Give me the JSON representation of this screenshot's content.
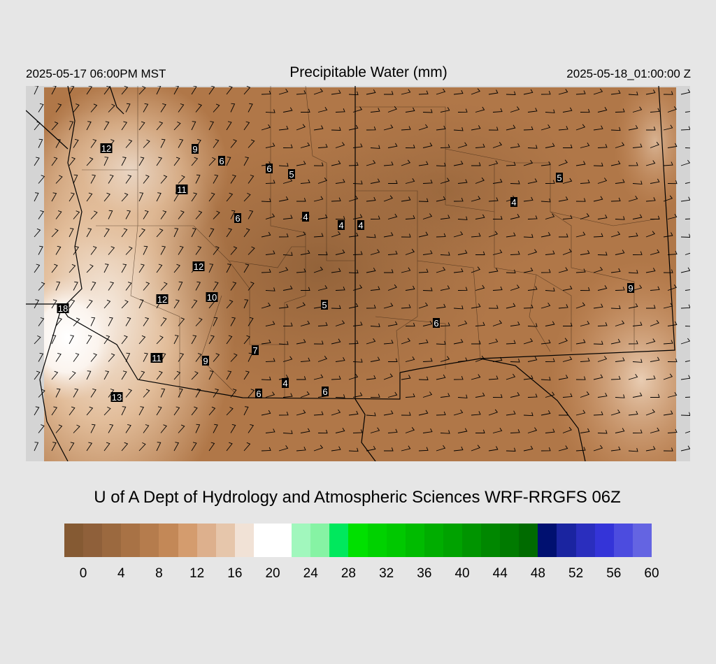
{
  "header": {
    "valid_local": "2025-05-17 06:00PM MST",
    "title": "Precipitable Water (mm)",
    "valid_utc": "2025-05-18_01:00:00 Z"
  },
  "credit": "U of A Dept of Hydrology and Atmospheric Sciences WRF-RRGFS 06Z",
  "colorbar": {
    "colors": [
      "#855a33",
      "#8f603a",
      "#9b693f",
      "#a87245",
      "#b57c4d",
      "#c38857",
      "#d49c6e",
      "#ddb08d",
      "#e6c6ab",
      "#f1e2d6",
      "#ffffff",
      "#ffffff",
      "#a1f7bd",
      "#86f3a4",
      "#00e85d",
      "#00e000",
      "#00d200",
      "#00c800",
      "#00bb00",
      "#00ad00",
      "#00a200",
      "#009400",
      "#008700",
      "#007a00",
      "#006b00",
      "#001070",
      "#1a24a0",
      "#2a2ebe",
      "#3434d8",
      "#4c4cdf",
      "#6464e2"
    ],
    "tick_labels": [
      "0",
      "4",
      "8",
      "12",
      "16",
      "20",
      "24",
      "28",
      "32",
      "36",
      "40",
      "44",
      "48",
      "52",
      "56",
      "60"
    ]
  },
  "map": {
    "station_values": [
      {
        "label": "12"
      },
      {
        "label": "9"
      },
      {
        "label": "6"
      },
      {
        "label": "6"
      },
      {
        "label": "5"
      },
      {
        "label": "11"
      },
      {
        "label": "6"
      },
      {
        "label": "4"
      },
      {
        "label": "4"
      },
      {
        "label": "4"
      },
      {
        "label": "5"
      },
      {
        "label": "4"
      },
      {
        "label": "12"
      },
      {
        "label": "12"
      },
      {
        "label": "10"
      },
      {
        "label": "18"
      },
      {
        "label": "5"
      },
      {
        "label": "6"
      },
      {
        "label": "9"
      },
      {
        "label": "7"
      },
      {
        "label": "11"
      },
      {
        "label": "9"
      },
      {
        "label": "4"
      },
      {
        "label": "6"
      },
      {
        "label": "6"
      },
      {
        "label": "13"
      }
    ]
  }
}
